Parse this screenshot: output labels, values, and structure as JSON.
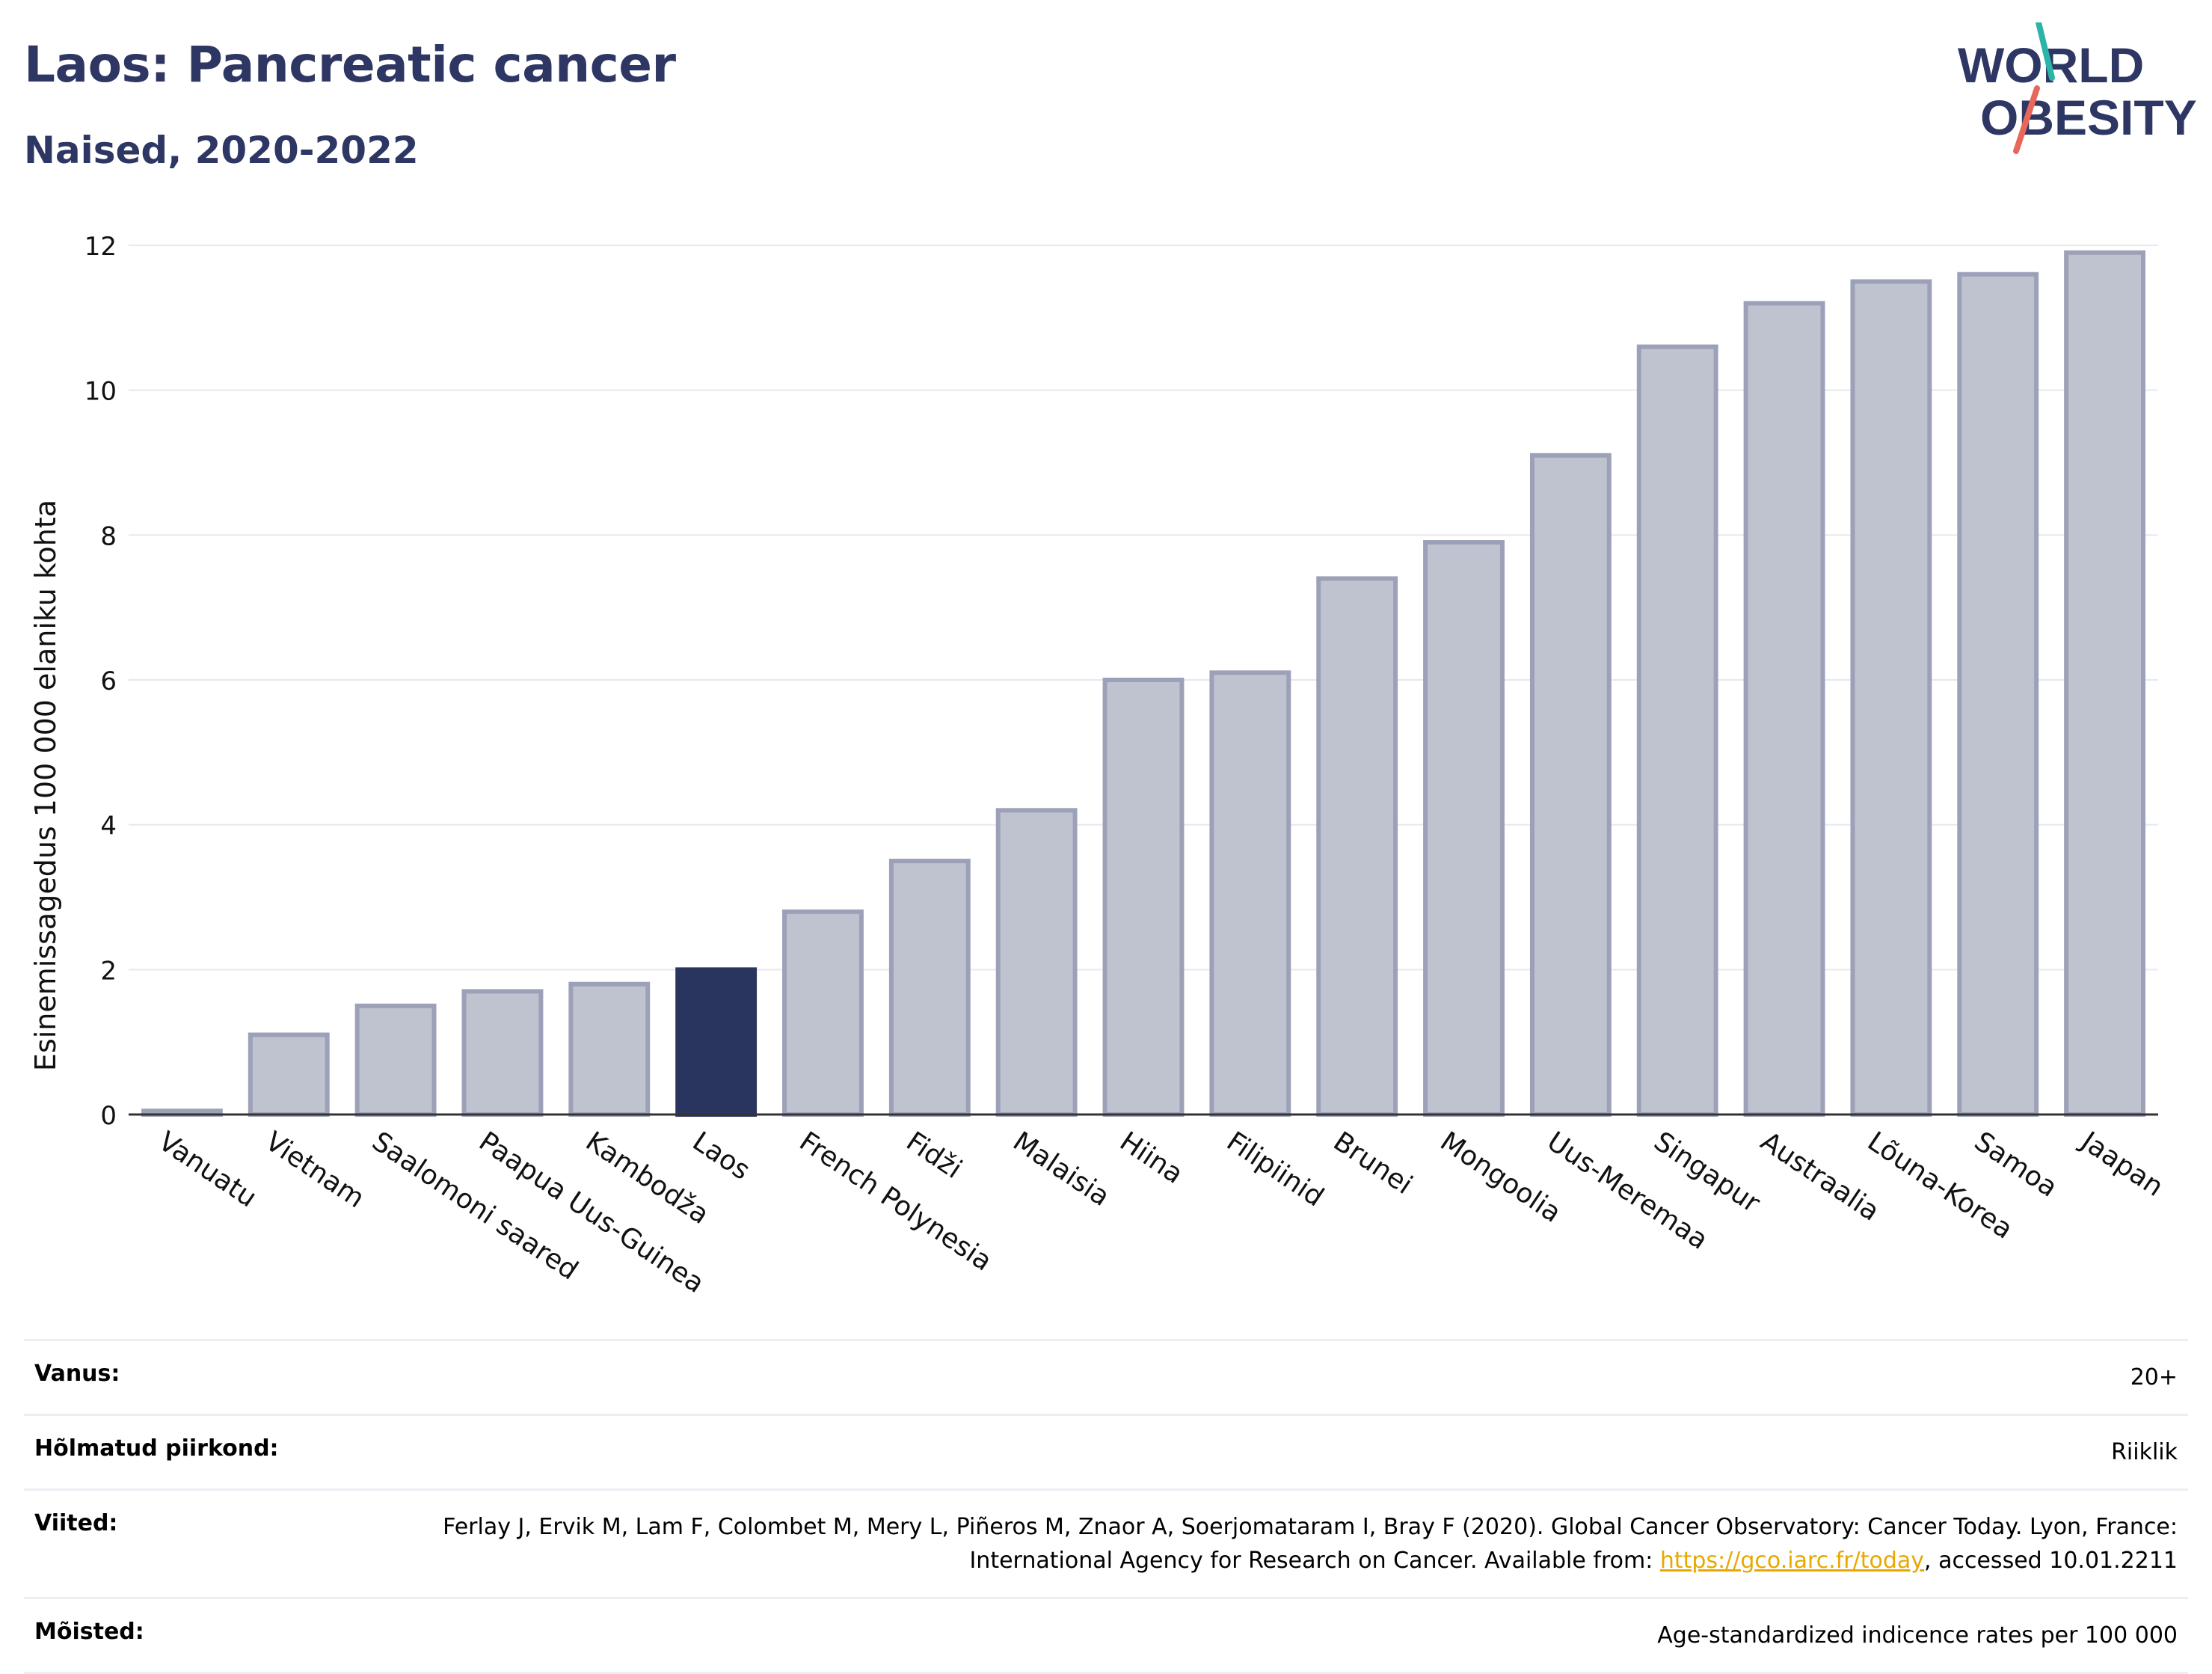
{
  "header": {
    "title": "Laos: Pancreatic cancer",
    "subtitle": "Naised, 2020-2022"
  },
  "logo": {
    "line1": "WORLD",
    "line2": "OBESITY",
    "accent_colors": [
      "#2bb5a8",
      "#e8675a"
    ]
  },
  "chart_data": {
    "type": "bar",
    "title": "Laos: Pancreatic cancer",
    "subtitle": "Naised, 2020-2022",
    "xlabel": "",
    "ylabel": "Esinemissagedus 100 000 elaniku kohta",
    "ylim": [
      0,
      12
    ],
    "yticks": [
      0,
      2,
      4,
      6,
      8,
      10,
      12
    ],
    "grid": true,
    "categories": [
      "Vanuatu",
      "Vietnam",
      "Saalomoni saared",
      "Paapua Uus-Guinea",
      "Kambodža",
      "Laos",
      "French Polynesia",
      "Fidži",
      "Malaisia",
      "Hiina",
      "Filipiinid",
      "Brunei",
      "Mongoolia",
      "Uus-Meremaa",
      "Singapur",
      "Austraalia",
      "Lõuna-Korea",
      "Samoa",
      "Jaapan"
    ],
    "values": [
      0.05,
      1.1,
      1.5,
      1.7,
      1.8,
      2.0,
      2.8,
      3.5,
      4.2,
      6.0,
      6.1,
      7.4,
      7.9,
      9.1,
      10.6,
      11.2,
      11.5,
      11.6,
      11.9
    ],
    "highlight": "Laos",
    "colors": {
      "bar": "#bfc3d0",
      "bar_border": "#9ca1b8",
      "highlight": "#2a355f",
      "grid": "#e6e8ee",
      "axis": "#333333"
    }
  },
  "meta": {
    "age_label": "Vanus:",
    "age_value": "20+",
    "region_label": "Hõlmatud piirkond:",
    "region_value": "Riiklik",
    "refs_label": "Viited:",
    "refs_text": "Ferlay J, Ervik M, Lam F, Colombet M, Mery L, Piñeros M, Znaor A, Soerjomataram I, Bray F (2020). Global Cancer Observatory: Cancer Today. Lyon, France: International Agency for Research on Cancer. Available from: ",
    "refs_link": "https://gco.iarc.fr/today",
    "refs_suffix": ", accessed 10.01.2211",
    "defs_label": "Mõisted:",
    "defs_value": "Age-standardized indicence rates per 100 000"
  }
}
